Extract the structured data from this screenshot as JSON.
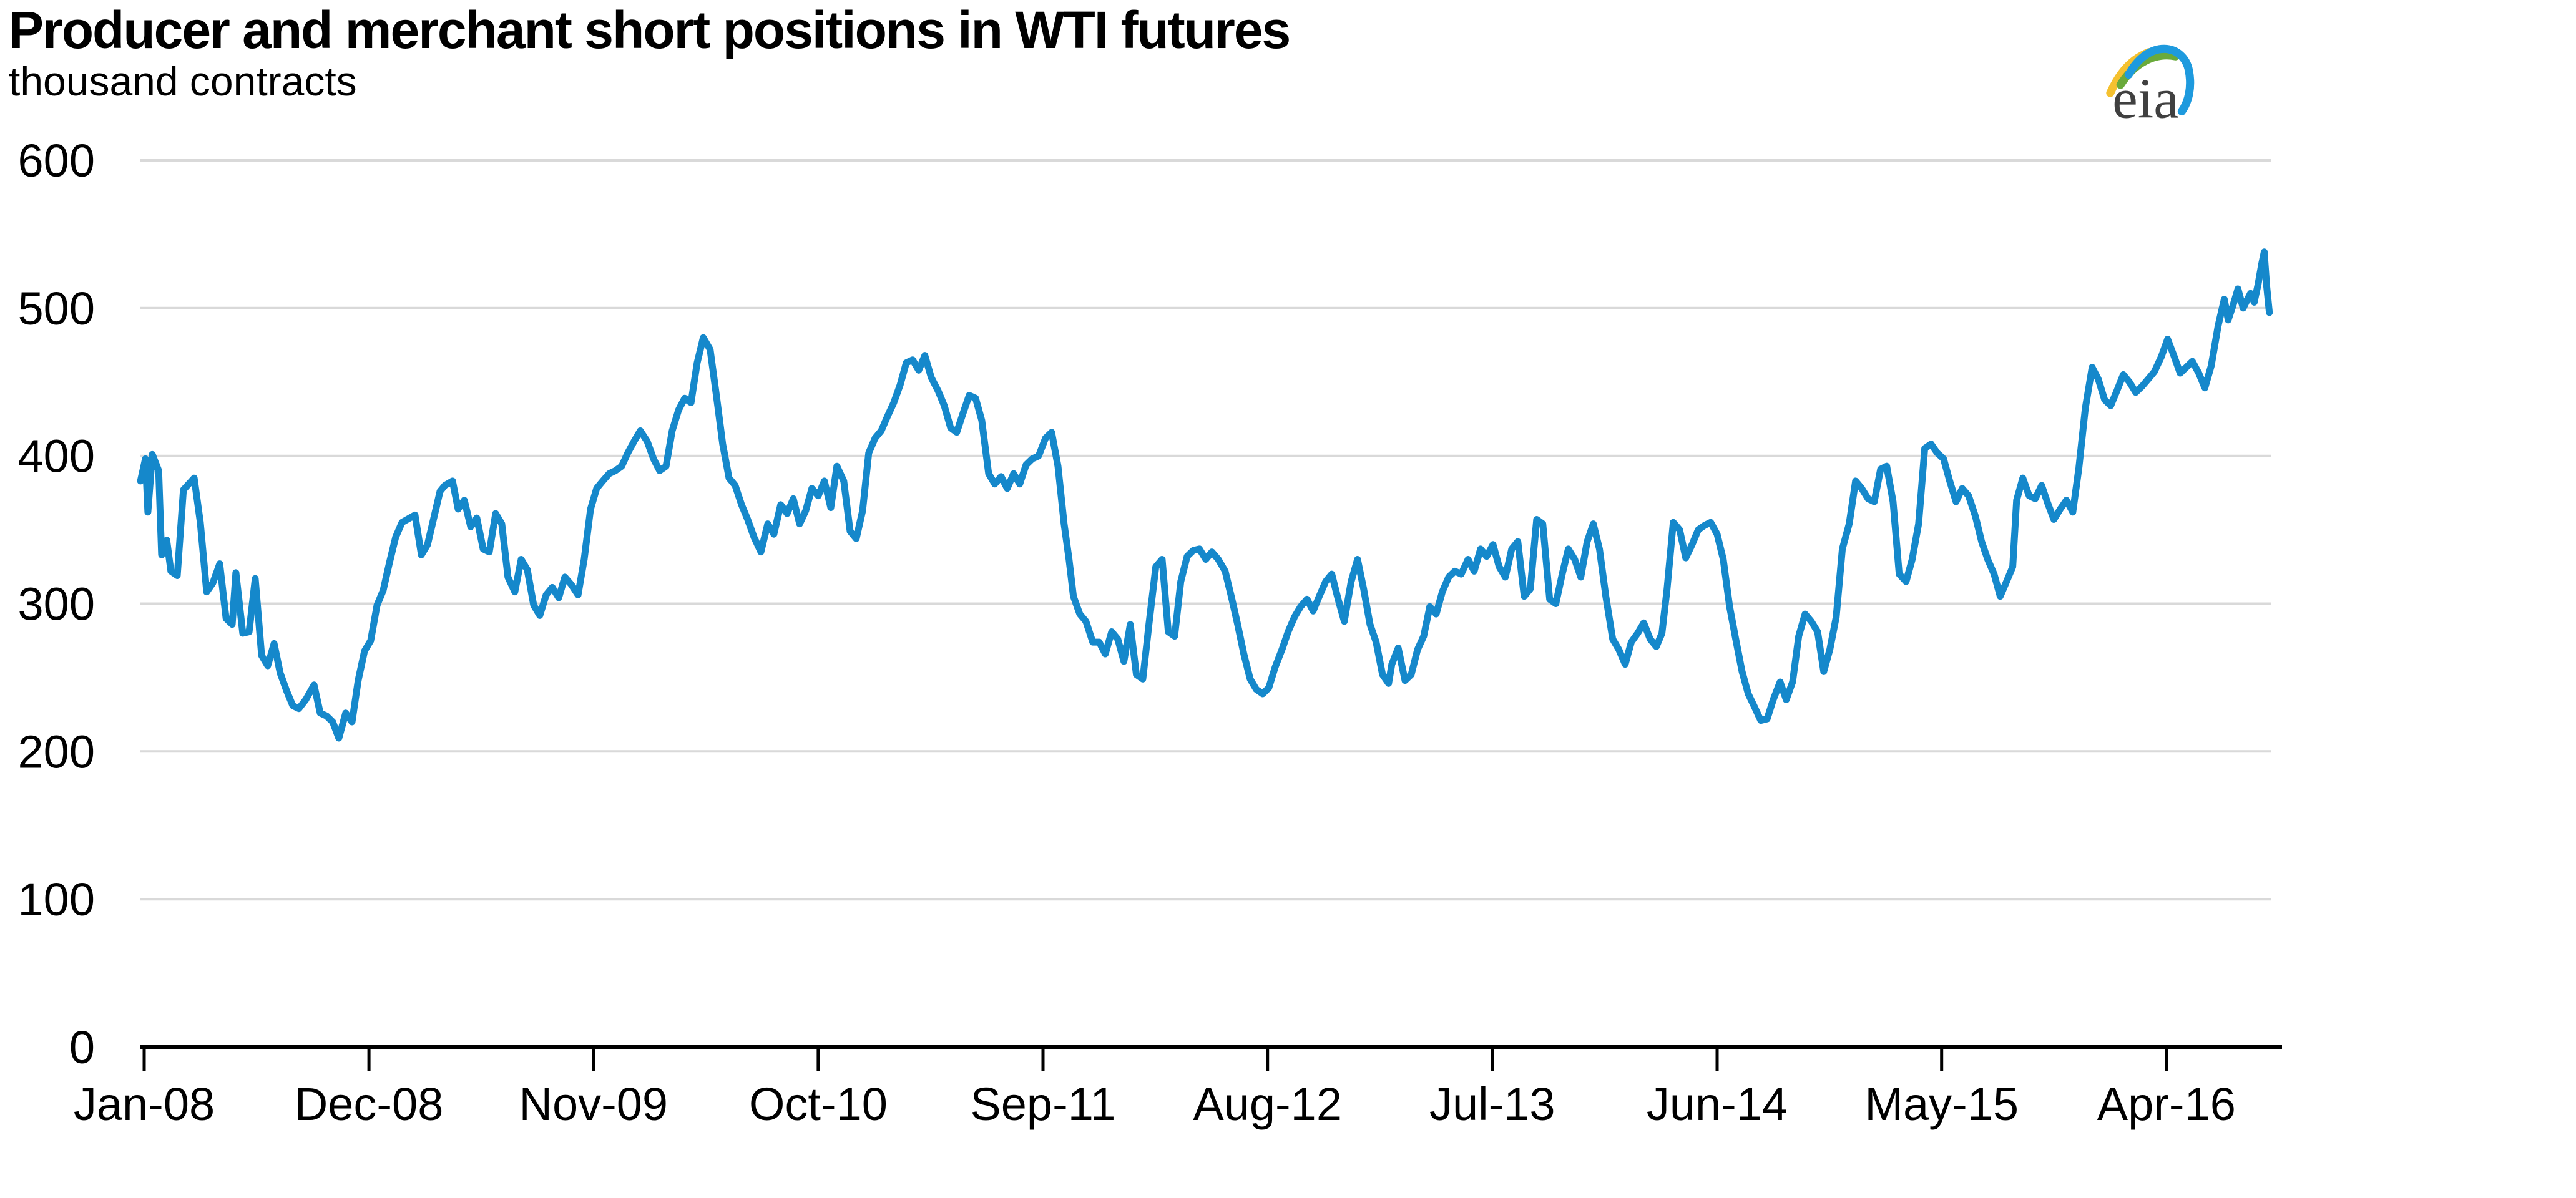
{
  "header": {
    "title": "Producer and merchant short positions in WTI futures",
    "subtitle": "thousand contracts"
  },
  "logo": {
    "text": "eia",
    "text_color": "#404040",
    "swoosh_yellow": "#f5c12f",
    "swoosh_green": "#6aaa3b",
    "swoosh_blue": "#1e9ade"
  },
  "chart_data": {
    "type": "line",
    "title": "Producer and merchant short positions in WTI futures",
    "xlabel": "",
    "ylabel": "thousand contracts",
    "legend_position": "none",
    "grid": "horizontal",
    "line_color": "#1588cb",
    "grid_color": "#d9d9d9",
    "axis_color": "#000000",
    "ylim": [
      0,
      600
    ],
    "y_ticks": [
      0,
      100,
      200,
      300,
      400,
      500,
      600
    ],
    "x_ticks": [
      {
        "label": "Jan-08",
        "x": 2008.0
      },
      {
        "label": "Dec-08",
        "x": 2008.917
      },
      {
        "label": "Nov-09",
        "x": 2009.833
      },
      {
        "label": "Oct-10",
        "x": 2010.75
      },
      {
        "label": "Sep-11",
        "x": 2011.667
      },
      {
        "label": "Aug-12",
        "x": 2012.583
      },
      {
        "label": "Jul-13",
        "x": 2013.5
      },
      {
        "label": "Jun-14",
        "x": 2014.417
      },
      {
        "label": "May-15",
        "x": 2015.333
      },
      {
        "label": "Apr-16",
        "x": 2016.25
      }
    ],
    "x_range": [
      2007.985,
      2016.67
    ],
    "points": [
      [
        2007.985,
        383
      ],
      [
        2008.005,
        398
      ],
      [
        2008.015,
        362
      ],
      [
        2008.033,
        401
      ],
      [
        2008.059,
        390
      ],
      [
        2008.071,
        333
      ],
      [
        2008.092,
        343
      ],
      [
        2008.109,
        322
      ],
      [
        2008.135,
        319
      ],
      [
        2008.16,
        377
      ],
      [
        2008.204,
        385
      ],
      [
        2008.229,
        355
      ],
      [
        2008.255,
        308
      ],
      [
        2008.28,
        314
      ],
      [
        2008.308,
        327
      ],
      [
        2008.334,
        290
      ],
      [
        2008.359,
        286
      ],
      [
        2008.374,
        321
      ],
      [
        2008.402,
        280
      ],
      [
        2008.428,
        281
      ],
      [
        2008.453,
        317
      ],
      [
        2008.479,
        265
      ],
      [
        2008.504,
        258
      ],
      [
        2008.53,
        273
      ],
      [
        2008.555,
        253
      ],
      [
        2008.581,
        241
      ],
      [
        2008.606,
        231
      ],
      [
        2008.631,
        229
      ],
      [
        2008.659,
        235
      ],
      [
        2008.693,
        245
      ],
      [
        2008.718,
        226
      ],
      [
        2008.744,
        224
      ],
      [
        2008.769,
        220
      ],
      [
        2008.794,
        209
      ],
      [
        2008.822,
        226
      ],
      [
        2008.848,
        220
      ],
      [
        2008.873,
        248
      ],
      [
        2008.899,
        268
      ],
      [
        2008.924,
        275
      ],
      [
        2008.95,
        299
      ],
      [
        2008.975,
        309
      ],
      [
        2009.001,
        328
      ],
      [
        2009.026,
        345
      ],
      [
        2009.052,
        355
      ],
      [
        2009.105,
        360
      ],
      [
        2009.131,
        333
      ],
      [
        2009.156,
        340
      ],
      [
        2009.207,
        376
      ],
      [
        2009.227,
        380
      ],
      [
        2009.258,
        383
      ],
      [
        2009.281,
        364
      ],
      [
        2009.306,
        370
      ],
      [
        2009.332,
        352
      ],
      [
        2009.357,
        358
      ],
      [
        2009.383,
        337
      ],
      [
        2009.408,
        335
      ],
      [
        2009.434,
        361
      ],
      [
        2009.459,
        354
      ],
      [
        2009.484,
        318
      ],
      [
        2009.512,
        308
      ],
      [
        2009.538,
        330
      ],
      [
        2009.563,
        323
      ],
      [
        2009.589,
        299
      ],
      [
        2009.614,
        292
      ],
      [
        2009.64,
        306
      ],
      [
        2009.665,
        311
      ],
      [
        2009.691,
        304
      ],
      [
        2009.716,
        318
      ],
      [
        2009.742,
        313
      ],
      [
        2009.77,
        306
      ],
      [
        2009.795,
        330
      ],
      [
        2009.821,
        364
      ],
      [
        2009.846,
        378
      ],
      [
        2009.871,
        383
      ],
      [
        2009.897,
        388
      ],
      [
        2009.922,
        390
      ],
      [
        2009.948,
        393
      ],
      [
        2009.973,
        402
      ],
      [
        2009.999,
        410
      ],
      [
        2010.024,
        417
      ],
      [
        2010.052,
        410
      ],
      [
        2010.078,
        398
      ],
      [
        2010.103,
        390
      ],
      [
        2010.129,
        393
      ],
      [
        2010.154,
        417
      ],
      [
        2010.18,
        431
      ],
      [
        2010.205,
        439
      ],
      [
        2010.231,
        436
      ],
      [
        2010.256,
        463
      ],
      [
        2010.281,
        480
      ],
      [
        2010.309,
        472
      ],
      [
        2010.335,
        440
      ],
      [
        2010.36,
        408
      ],
      [
        2010.386,
        385
      ],
      [
        2010.411,
        380
      ],
      [
        2010.437,
        367
      ],
      [
        2010.462,
        357
      ],
      [
        2010.488,
        345
      ],
      [
        2010.516,
        335
      ],
      [
        2010.544,
        354
      ],
      [
        2010.569,
        347
      ],
      [
        2010.597,
        367
      ],
      [
        2010.623,
        361
      ],
      [
        2010.648,
        371
      ],
      [
        2010.674,
        354
      ],
      [
        2010.699,
        363
      ],
      [
        2010.724,
        378
      ],
      [
        2010.75,
        373
      ],
      [
        2010.775,
        383
      ],
      [
        2010.801,
        365
      ],
      [
        2010.826,
        393
      ],
      [
        2010.854,
        383
      ],
      [
        2010.88,
        349
      ],
      [
        2010.905,
        344
      ],
      [
        2010.931,
        363
      ],
      [
        2010.956,
        402
      ],
      [
        2010.982,
        412
      ],
      [
        2011.007,
        417
      ],
      [
        2011.033,
        427
      ],
      [
        2011.058,
        436
      ],
      [
        2011.084,
        448
      ],
      [
        2011.109,
        463
      ],
      [
        2011.135,
        465
      ],
      [
        2011.16,
        458
      ],
      [
        2011.185,
        468
      ],
      [
        2011.211,
        453
      ],
      [
        2011.239,
        444
      ],
      [
        2011.264,
        434
      ],
      [
        2011.29,
        419
      ],
      [
        2011.315,
        416
      ],
      [
        2011.341,
        429
      ],
      [
        2011.366,
        441
      ],
      [
        2011.392,
        439
      ],
      [
        2011.417,
        424
      ],
      [
        2011.445,
        388
      ],
      [
        2011.47,
        381
      ],
      [
        2011.496,
        386
      ],
      [
        2011.521,
        378
      ],
      [
        2011.547,
        388
      ],
      [
        2011.572,
        381
      ],
      [
        2011.598,
        394
      ],
      [
        2011.623,
        398
      ],
      [
        2011.649,
        400
      ],
      [
        2011.677,
        412
      ],
      [
        2011.702,
        416
      ],
      [
        2011.728,
        393
      ],
      [
        2011.753,
        354
      ],
      [
        2011.773,
        330
      ],
      [
        2011.791,
        305
      ],
      [
        2011.817,
        293
      ],
      [
        2011.842,
        288
      ],
      [
        2011.87,
        274
      ],
      [
        2011.896,
        274
      ],
      [
        2011.921,
        266
      ],
      [
        2011.947,
        281
      ],
      [
        2011.972,
        276
      ],
      [
        2011.997,
        261
      ],
      [
        2012.023,
        286
      ],
      [
        2012.048,
        252
      ],
      [
        2012.074,
        249
      ],
      [
        2012.099,
        286
      ],
      [
        2012.127,
        325
      ],
      [
        2012.153,
        330
      ],
      [
        2012.178,
        281
      ],
      [
        2012.204,
        278
      ],
      [
        2012.229,
        315
      ],
      [
        2012.255,
        332
      ],
      [
        2012.28,
        336
      ],
      [
        2012.305,
        337
      ],
      [
        2012.331,
        330
      ],
      [
        2012.356,
        335
      ],
      [
        2012.382,
        330
      ],
      [
        2012.41,
        322
      ],
      [
        2012.435,
        305
      ],
      [
        2012.461,
        286
      ],
      [
        2012.486,
        266
      ],
      [
        2012.512,
        249
      ],
      [
        2012.537,
        242
      ],
      [
        2012.563,
        239
      ],
      [
        2012.588,
        243
      ],
      [
        2012.614,
        257
      ],
      [
        2012.642,
        269
      ],
      [
        2012.667,
        281
      ],
      [
        2012.693,
        291
      ],
      [
        2012.718,
        298
      ],
      [
        2012.744,
        303
      ],
      [
        2012.769,
        295
      ],
      [
        2012.794,
        305
      ],
      [
        2012.82,
        315
      ],
      [
        2012.845,
        320
      ],
      [
        2012.871,
        303
      ],
      [
        2012.896,
        288
      ],
      [
        2012.924,
        315
      ],
      [
        2012.95,
        330
      ],
      [
        2012.975,
        310
      ],
      [
        2013.001,
        286
      ],
      [
        2013.026,
        274
      ],
      [
        2013.052,
        252
      ],
      [
        2013.077,
        246
      ],
      [
        2013.09,
        259
      ],
      [
        2013.116,
        270
      ],
      [
        2013.144,
        248
      ],
      [
        2013.169,
        252
      ],
      [
        2013.195,
        269
      ],
      [
        2013.22,
        278
      ],
      [
        2013.245,
        298
      ],
      [
        2013.271,
        293
      ],
      [
        2013.296,
        308
      ],
      [
        2013.322,
        318
      ],
      [
        2013.347,
        322
      ],
      [
        2013.373,
        320
      ],
      [
        2013.401,
        330
      ],
      [
        2013.426,
        322
      ],
      [
        2013.452,
        337
      ],
      [
        2013.477,
        332
      ],
      [
        2013.503,
        340
      ],
      [
        2013.528,
        325
      ],
      [
        2013.553,
        318
      ],
      [
        2013.579,
        337
      ],
      [
        2013.604,
        342
      ],
      [
        2013.63,
        305
      ],
      [
        2013.655,
        310
      ],
      [
        2013.681,
        357
      ],
      [
        2013.706,
        354
      ],
      [
        2013.734,
        303
      ],
      [
        2013.759,
        300
      ],
      [
        2013.785,
        320
      ],
      [
        2013.81,
        337
      ],
      [
        2013.836,
        330
      ],
      [
        2013.861,
        318
      ],
      [
        2013.887,
        342
      ],
      [
        2013.912,
        354
      ],
      [
        2013.937,
        337
      ],
      [
        2013.963,
        305
      ],
      [
        2013.991,
        276
      ],
      [
        2014.016,
        269
      ],
      [
        2014.042,
        259
      ],
      [
        2014.067,
        274
      ],
      [
        2014.093,
        280
      ],
      [
        2014.118,
        287
      ],
      [
        2014.144,
        276
      ],
      [
        2014.169,
        271
      ],
      [
        2014.192,
        280
      ],
      [
        2014.213,
        310
      ],
      [
        2014.238,
        355
      ],
      [
        2014.264,
        350
      ],
      [
        2014.289,
        331
      ],
      [
        2014.315,
        340
      ],
      [
        2014.34,
        350
      ],
      [
        2014.366,
        353
      ],
      [
        2014.391,
        355
      ],
      [
        2014.417,
        347
      ],
      [
        2014.442,
        330
      ],
      [
        2014.468,
        298
      ],
      [
        2014.493,
        276
      ],
      [
        2014.519,
        254
      ],
      [
        2014.544,
        239
      ],
      [
        2014.57,
        230
      ],
      [
        2014.595,
        221
      ],
      [
        2014.621,
        222
      ],
      [
        2014.646,
        235
      ],
      [
        2014.674,
        247
      ],
      [
        2014.699,
        235
      ],
      [
        2014.725,
        247
      ],
      [
        2014.75,
        278
      ],
      [
        2014.776,
        293
      ],
      [
        2014.801,
        288
      ],
      [
        2014.827,
        281
      ],
      [
        2014.852,
        254
      ],
      [
        2014.877,
        269
      ],
      [
        2014.903,
        291
      ],
      [
        2014.928,
        337
      ],
      [
        2014.956,
        354
      ],
      [
        2014.982,
        383
      ],
      [
        2015.007,
        378
      ],
      [
        2015.033,
        371
      ],
      [
        2015.058,
        369
      ],
      [
        2015.084,
        391
      ],
      [
        2015.109,
        393
      ],
      [
        2015.135,
        369
      ],
      [
        2015.16,
        320
      ],
      [
        2015.188,
        315
      ],
      [
        2015.213,
        330
      ],
      [
        2015.239,
        354
      ],
      [
        2015.264,
        405
      ],
      [
        2015.29,
        408
      ],
      [
        2015.315,
        402
      ],
      [
        2015.341,
        398
      ],
      [
        2015.366,
        383
      ],
      [
        2015.392,
        369
      ],
      [
        2015.417,
        378
      ],
      [
        2015.443,
        373
      ],
      [
        2015.471,
        359
      ],
      [
        2015.496,
        342
      ],
      [
        2015.521,
        330
      ],
      [
        2015.547,
        320
      ],
      [
        2015.572,
        305
      ],
      [
        2015.598,
        315
      ],
      [
        2015.623,
        325
      ],
      [
        2015.639,
        370
      ],
      [
        2015.664,
        385
      ],
      [
        2015.69,
        373
      ],
      [
        2015.715,
        371
      ],
      [
        2015.741,
        380
      ],
      [
        2015.766,
        368
      ],
      [
        2015.791,
        357
      ],
      [
        2015.817,
        364
      ],
      [
        2015.842,
        370
      ],
      [
        2015.868,
        362
      ],
      [
        2015.893,
        392
      ],
      [
        2015.919,
        432
      ],
      [
        2015.947,
        460
      ],
      [
        2015.972,
        452
      ],
      [
        2015.998,
        438
      ],
      [
        2016.023,
        434
      ],
      [
        2016.048,
        444
      ],
      [
        2016.074,
        455
      ],
      [
        2016.099,
        450
      ],
      [
        2016.125,
        443
      ],
      [
        2016.15,
        447
      ],
      [
        2016.176,
        452
      ],
      [
        2016.201,
        457
      ],
      [
        2016.229,
        467
      ],
      [
        2016.255,
        479
      ],
      [
        2016.28,
        468
      ],
      [
        2016.306,
        456
      ],
      [
        2016.331,
        460
      ],
      [
        2016.356,
        464
      ],
      [
        2016.382,
        456
      ],
      [
        2016.407,
        446
      ],
      [
        2016.433,
        461
      ],
      [
        2016.461,
        488
      ],
      [
        2016.486,
        506
      ],
      [
        2016.502,
        492
      ],
      [
        2016.522,
        502
      ],
      [
        2016.542,
        513
      ],
      [
        2016.563,
        500
      ],
      [
        2016.578,
        505
      ],
      [
        2016.593,
        510
      ],
      [
        2016.608,
        504
      ],
      [
        2016.624,
        516
      ],
      [
        2016.639,
        530
      ],
      [
        2016.649,
        538
      ],
      [
        2016.659,
        515
      ],
      [
        2016.67,
        497
      ]
    ]
  }
}
